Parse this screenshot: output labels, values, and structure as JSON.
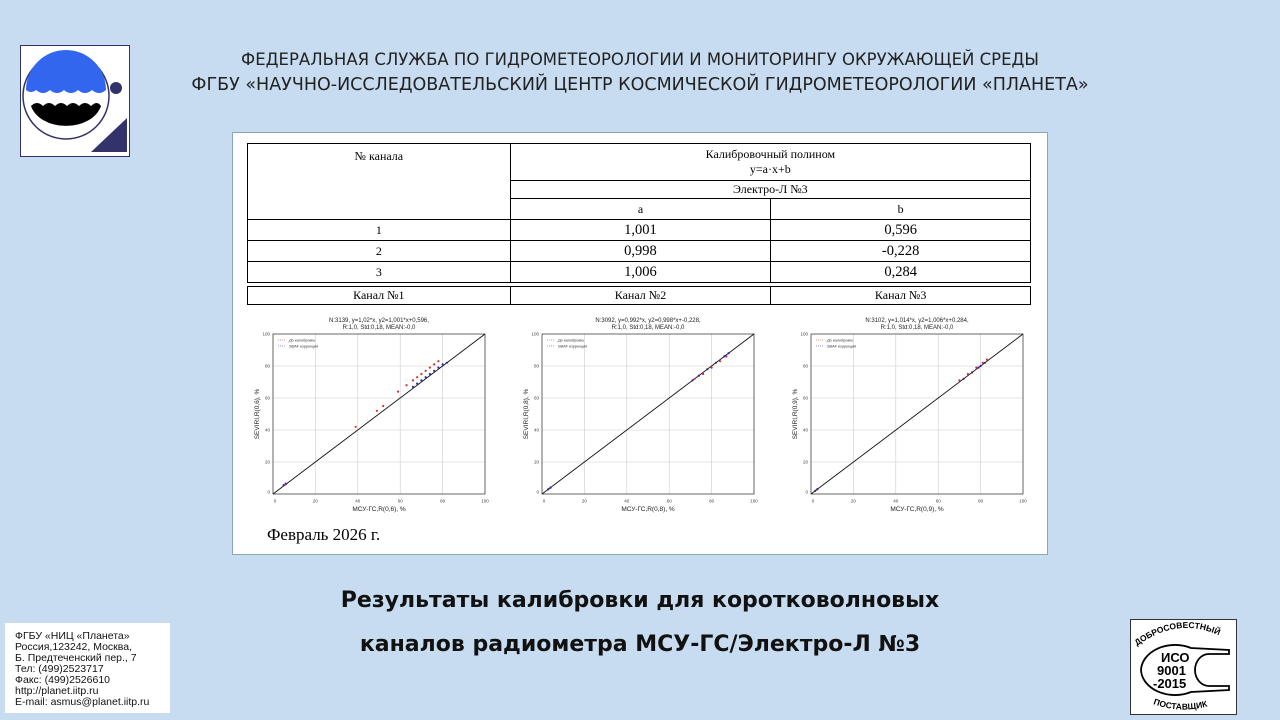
{
  "header": {
    "line1": "ФЕДЕРАЛЬНАЯ СЛУЖБА ПО ГИДРОМЕТЕОРОЛОГИИ И МОНИТОРИНГУ ОКРУЖАЮЩЕЙ СРЕДЫ",
    "line2": "ФГБУ «НАУЧНО-ИССЛЕДОВАТЕЛЬСКИЙ ЦЕНТР КОСМИЧЕСКОЙ ГИДРОМЕТЕОРОЛОГИИ «ПЛАНЕТА»"
  },
  "colors": {
    "background": "#c7dcf0",
    "logo_blue": "#3366ee",
    "logo_navy": "#33336b",
    "before": "#d03030",
    "after": "#2a2aa0"
  },
  "table": {
    "col1_header": "№ канала",
    "col2_header": "Калибровочный полином",
    "formula": "y=a·x+b",
    "satellite": "Электро-Л №3",
    "a_header": "a",
    "b_header": "b",
    "rows": [
      {
        "ch": "1",
        "a": "1,001",
        "b": "0,596"
      },
      {
        "ch": "2",
        "a": "0,998",
        "b": "-0,228"
      },
      {
        "ch": "3",
        "a": "1,006",
        "b": "0,284"
      }
    ],
    "channels": [
      "Канал №1",
      "Канал №2",
      "Канал №3"
    ]
  },
  "chart_data": [
    {
      "type": "scatter",
      "title_line1": "N:3139, y=1,02*x, y2=1,001*x+0,596,",
      "title_line2": "R:1,0, Std:0,18, MEAN:-0,0",
      "xlabel": "МСУ-ГС,R(0,6), %",
      "ylabel": "SEVIRI,R(0,6), %",
      "xlim": [
        0,
        100
      ],
      "ylim": [
        0,
        100
      ],
      "ticks": [
        "0",
        "20",
        "40",
        "60",
        "80",
        "100"
      ],
      "grid": true,
      "legend": [
        "До калибровки",
        "SBAF коррекция"
      ],
      "legend_position": "top-left",
      "series": [
        {
          "name": "До калибровки",
          "points": [
            [
              6,
              6
            ],
            [
              39,
              42
            ],
            [
              49,
              52
            ],
            [
              52,
              55
            ],
            [
              59,
              64
            ],
            [
              63,
              68
            ],
            [
              66,
              71
            ],
            [
              68,
              73
            ],
            [
              70,
              75
            ],
            [
              72,
              77
            ],
            [
              74,
              79
            ],
            [
              76,
              81
            ],
            [
              78,
              83
            ]
          ]
        },
        {
          "name": "SBAF коррекция",
          "points": [
            [
              5,
              5.5
            ],
            [
              6,
              6.5
            ],
            [
              66,
              67
            ],
            [
              68,
              69
            ],
            [
              70,
              71
            ],
            [
              72,
              73
            ],
            [
              74,
              75
            ],
            [
              76,
              77
            ],
            [
              78,
              79
            ],
            [
              80,
              81
            ],
            [
              82,
              82
            ]
          ]
        }
      ]
    },
    {
      "type": "scatter",
      "title_line1": "N:3092, y=0,992*x, y2=0,998*x+-0,228,",
      "title_line2": "R:1,0, Std:0,18, MEAN:-0,0",
      "xlabel": "МСУ-ГС,R(0,8), %",
      "ylabel": "SEVIRI,R(0,8), %",
      "xlim": [
        0,
        100
      ],
      "ylim": [
        0,
        100
      ],
      "ticks": [
        "0",
        "20",
        "40",
        "60",
        "80",
        "100"
      ],
      "grid": true,
      "legend": [
        "До калибровки",
        "SBAF коррекция"
      ],
      "legend_position": "top-left",
      "series": [
        {
          "name": "До калибровки",
          "points": [
            [
              3,
              3
            ],
            [
              4,
              4
            ],
            [
              72,
              72
            ],
            [
              76,
              75
            ],
            [
              80,
              79
            ],
            [
              84,
              83
            ],
            [
              87,
              86
            ]
          ]
        },
        {
          "name": "SBAF коррекция",
          "points": [
            [
              3,
              3
            ],
            [
              4,
              4
            ],
            [
              71,
              71
            ],
            [
              74,
              74
            ],
            [
              78,
              78
            ],
            [
              82,
              82
            ],
            [
              86,
              86
            ],
            [
              88,
              88
            ]
          ]
        }
      ]
    },
    {
      "type": "scatter",
      "title_line1": "N:3102, y=1,014*x, y2=1,006*x+0,284,",
      "title_line2": "R:1,0, Std:0,18, MEAN:-0,0",
      "xlabel": "МСУ-ГС,R(0,9), %",
      "ylabel": "SEVIRI,R(0,9), %",
      "xlim": [
        0,
        100
      ],
      "ylim": [
        0,
        100
      ],
      "ticks": [
        "0",
        "20",
        "40",
        "60",
        "80",
        "100"
      ],
      "grid": true,
      "legend": [
        "До калибровки",
        "SBAF коррекция"
      ],
      "legend_position": "top-left",
      "series": [
        {
          "name": "До калибровки",
          "points": [
            [
              2,
              2
            ],
            [
              3,
              3
            ],
            [
              70,
              71
            ],
            [
              74,
              75
            ],
            [
              78,
              79
            ],
            [
              81,
              82
            ],
            [
              83,
              84
            ]
          ]
        },
        {
          "name": "SBAF коррекция",
          "points": [
            [
              2,
              2
            ],
            [
              3,
              3
            ],
            [
              72,
              72
            ],
            [
              76,
              76
            ],
            [
              79,
              79
            ],
            [
              80,
              80
            ],
            [
              82,
              82
            ]
          ]
        }
      ]
    }
  ],
  "date": "Февраль 2026 г.",
  "title": {
    "line1": "Результаты калибровки для коротковолновых",
    "line2": "каналов радиометра МСУ-ГС/Электро-Л №3"
  },
  "address": [
    "ФГБУ «НИЦ «Планета»",
    "Россия,123242, Москва,",
    "Б. Предтеченский пер., 7",
    "Тел:   (499)2523717",
    "Факс:  (499)2526610",
    "http://planet.iitp.ru",
    "E-mail:  asmus@planet.iitp.ru"
  ],
  "iso": {
    "top": "ДОБРОСОВЕСТНЫЙ",
    "l1": "ИСО",
    "l2": "9001",
    "l3": "-2015",
    "bottom": "ПОСТАВЩИК"
  }
}
